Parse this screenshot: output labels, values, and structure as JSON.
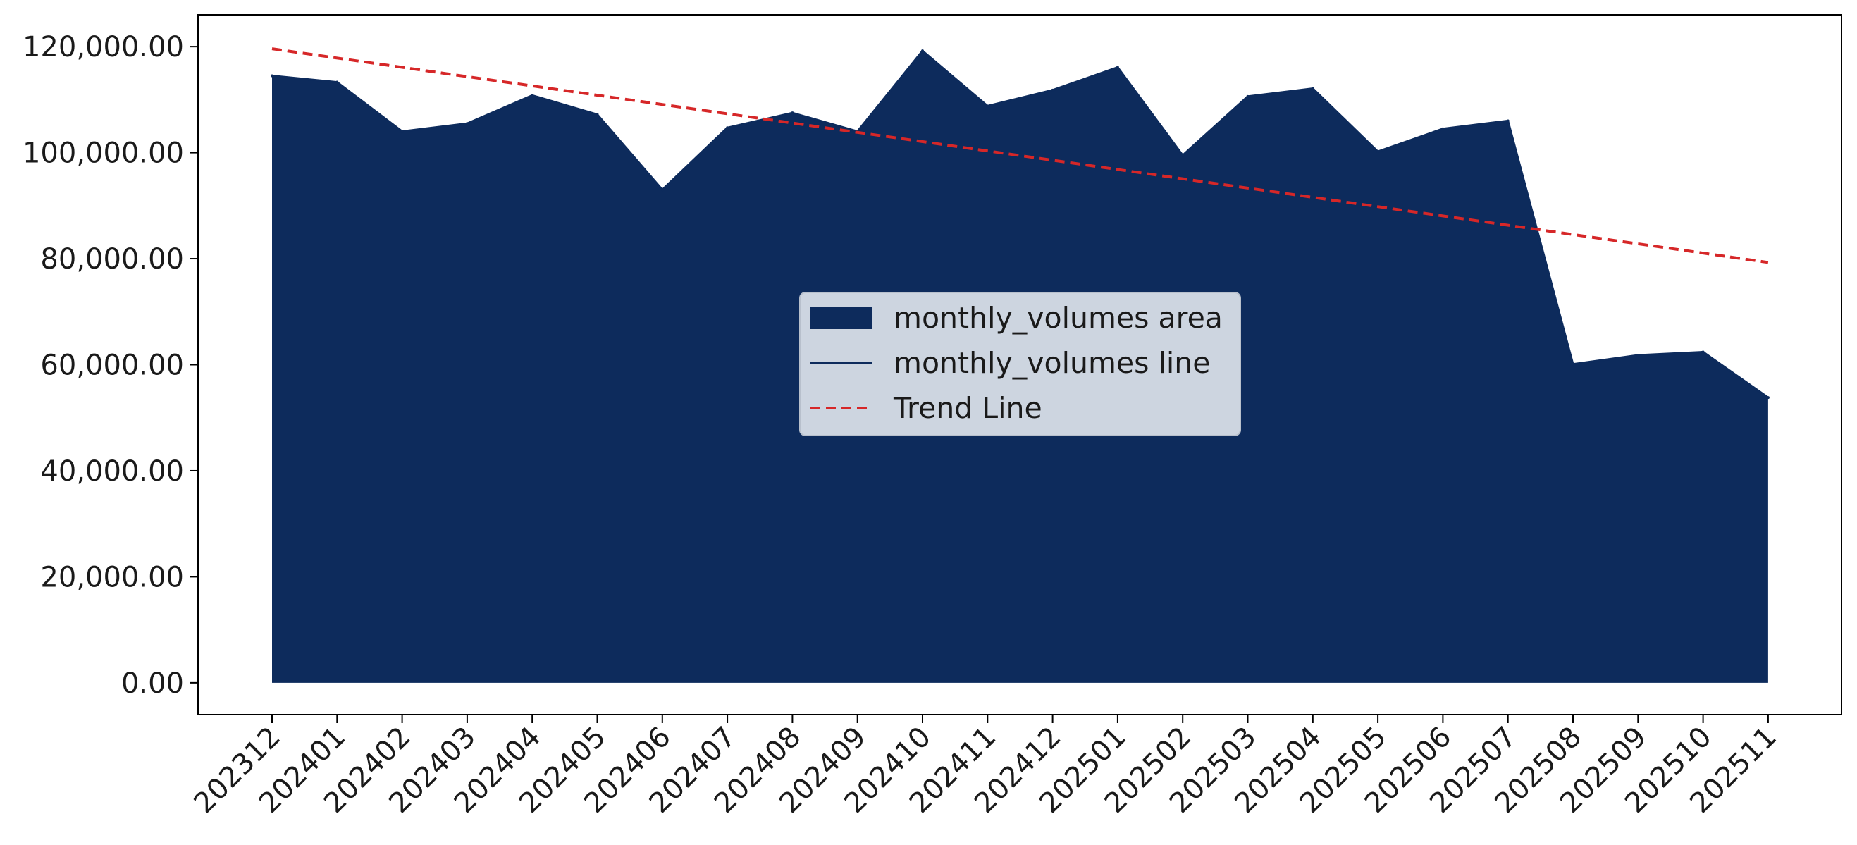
{
  "chart_data": {
    "type": "area",
    "title": "",
    "xlabel": "",
    "ylabel": "",
    "categories": [
      "202312",
      "202401",
      "202402",
      "202403",
      "202404",
      "202405",
      "202406",
      "202407",
      "202408",
      "202409",
      "202410",
      "202411",
      "202412",
      "202501",
      "202502",
      "202503",
      "202504",
      "202505",
      "202506",
      "202507",
      "202508",
      "202509",
      "202510",
      "202511"
    ],
    "series": [
      {
        "name": "monthly_volumes area",
        "kind": "area",
        "color": "#0d2b5c",
        "values": [
          114500,
          113300,
          104000,
          105500,
          110800,
          107200,
          93000,
          104700,
          107500,
          104000,
          119200,
          108800,
          111800,
          116100,
          99500,
          110600,
          112100,
          100200,
          104500,
          106000,
          60100,
          61800,
          62400,
          53800
        ]
      },
      {
        "name": "monthly_volumes line",
        "kind": "line",
        "color": "#0d2b5c",
        "values": [
          114500,
          113300,
          104000,
          105500,
          110800,
          107200,
          93000,
          104700,
          107500,
          104000,
          119200,
          108800,
          111800,
          116100,
          99500,
          110600,
          112100,
          100200,
          104500,
          106000,
          60100,
          61800,
          62400,
          53800
        ]
      },
      {
        "name": "Trend Line",
        "kind": "trend",
        "color": "#d62728",
        "start": 119600,
        "end": 79300
      }
    ],
    "yticks": [
      0,
      20000,
      40000,
      60000,
      80000,
      100000,
      120000
    ],
    "ytick_labels": [
      "0.00",
      "20,000.00",
      "40,000.00",
      "60,000.00",
      "80,000.00",
      "100,000.00",
      "120,000.00"
    ],
    "ylim": [
      -6000,
      126000
    ],
    "grid": false,
    "legend_position": "center"
  }
}
